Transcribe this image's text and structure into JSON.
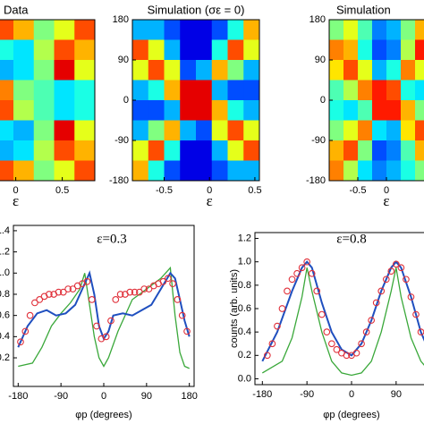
{
  "chart_data": [
    {
      "type": "heatmap",
      "title": "Data",
      "title_color": "#e02020",
      "xlabel": "ε",
      "xlim": [
        -0.9,
        0.85
      ],
      "ylim": [
        -180,
        180
      ],
      "xticks": [
        0,
        0.5
      ],
      "values": [
        [
          0.5,
          0.5,
          0.5,
          0.8,
          0.7,
          0.5,
          0.6,
          0.8
        ],
        [
          0.5,
          0.5,
          0.6,
          0.4,
          0.35,
          0.55,
          0.8,
          0.7
        ],
        [
          0.5,
          0.5,
          0.7,
          0.3,
          0.35,
          0.5,
          0.9,
          0.6
        ],
        [
          0.6,
          0.6,
          0.8,
          0.75,
          0.5,
          0.45,
          0.35,
          0.4
        ],
        [
          0.6,
          0.6,
          0.85,
          0.8,
          0.55,
          0.45,
          0.35,
          0.4
        ],
        [
          0.5,
          0.5,
          0.7,
          0.35,
          0.3,
          0.5,
          0.9,
          0.6
        ],
        [
          0.5,
          0.5,
          0.6,
          0.3,
          0.35,
          0.55,
          0.8,
          0.7
        ],
        [
          0.5,
          0.5,
          0.5,
          0.8,
          0.7,
          0.5,
          0.6,
          0.8
        ]
      ]
    },
    {
      "type": "heatmap",
      "title": "Simulation (σε = 0)",
      "title_color": "#3aa83a",
      "xlabel": "ε",
      "xlim": [
        -0.85,
        0.55
      ],
      "ylim": [
        -180,
        180
      ],
      "xticks": [
        -0.5,
        0,
        0.5
      ],
      "yticks": [
        180,
        90,
        0,
        -90,
        -180
      ],
      "values": [
        [
          0.3,
          0.3,
          0.2,
          0.1,
          0.1,
          0.2,
          0.4,
          0.7
        ],
        [
          0.8,
          0.6,
          0.3,
          0.1,
          0.1,
          0.4,
          0.8,
          0.6
        ],
        [
          0.6,
          0.8,
          0.6,
          0.2,
          0.3,
          0.7,
          0.5,
          0.3
        ],
        [
          0.3,
          0.4,
          0.7,
          0.9,
          0.9,
          0.3,
          0.2,
          0.2
        ],
        [
          0.2,
          0.2,
          0.3,
          0.9,
          0.9,
          0.7,
          0.4,
          0.3
        ],
        [
          0.3,
          0.5,
          0.7,
          0.3,
          0.2,
          0.6,
          0.8,
          0.6
        ],
        [
          0.6,
          0.8,
          0.4,
          0.1,
          0.1,
          0.3,
          0.6,
          0.8
        ],
        [
          0.7,
          0.4,
          0.2,
          0.1,
          0.1,
          0.2,
          0.3,
          0.3
        ]
      ]
    },
    {
      "type": "heatmap",
      "title": "Simulation",
      "title_color": "#1f4fbf",
      "xlabel": "ε",
      "xlim": [
        -1,
        1
      ],
      "ylim": [
        -180,
        180
      ],
      "xticks": [
        -0.5,
        0
      ],
      "yticks": [
        180,
        90,
        0,
        -90,
        -180
      ],
      "values": [
        [
          0.5,
          0.6,
          0.45,
          0.25,
          0.3,
          0.5,
          0.7,
          0.8
        ],
        [
          0.75,
          0.7,
          0.4,
          0.2,
          0.25,
          0.55,
          0.85,
          0.7
        ],
        [
          0.65,
          0.8,
          0.6,
          0.3,
          0.4,
          0.75,
          0.6,
          0.5
        ],
        [
          0.45,
          0.55,
          0.75,
          0.85,
          0.8,
          0.4,
          0.35,
          0.4
        ],
        [
          0.4,
          0.35,
          0.45,
          0.85,
          0.85,
          0.7,
          0.5,
          0.45
        ],
        [
          0.5,
          0.6,
          0.75,
          0.35,
          0.3,
          0.65,
          0.8,
          0.65
        ],
        [
          0.7,
          0.8,
          0.5,
          0.2,
          0.25,
          0.45,
          0.7,
          0.75
        ],
        [
          0.75,
          0.55,
          0.35,
          0.25,
          0.3,
          0.4,
          0.5,
          0.55
        ]
      ]
    },
    {
      "type": "line",
      "title": "ε=0.3",
      "xlabel": "φp (degrees)",
      "xlim": [
        -190,
        190
      ],
      "ylim": [
        -0.07,
        1.45
      ],
      "xticks": [
        -180,
        -90,
        0,
        90,
        180
      ],
      "yticks": [
        1.4,
        1.2,
        {
          "value": 1,
          "label": "1.0"
        },
        0.8,
        0.6,
        0.4,
        0.2
      ],
      "series": [
        {
          "color": "#3aa83a",
          "marker": "none",
          "x": [
            -180,
            -150,
            -130,
            -110,
            -90,
            -70,
            -50,
            -40,
            -30,
            -20,
            -10,
            0,
            10,
            30,
            60,
            90,
            120,
            140,
            150,
            160,
            170,
            180
          ],
          "values": [
            0.12,
            0.15,
            0.3,
            0.5,
            0.62,
            0.72,
            0.85,
            1.0,
            0.7,
            0.4,
            0.2,
            0.12,
            0.2,
            0.45,
            0.75,
            0.85,
            0.95,
            1.05,
            0.6,
            0.25,
            0.12,
            0.1
          ]
        },
        {
          "color": "#1f4fbf",
          "marker": "none",
          "x": [
            -180,
            -160,
            -140,
            -120,
            -100,
            -80,
            -60,
            -40,
            -30,
            -20,
            -10,
            0,
            10,
            20,
            40,
            60,
            80,
            100,
            120,
            140,
            150,
            160,
            170,
            180
          ],
          "values": [
            0.3,
            0.5,
            0.62,
            0.65,
            0.6,
            0.62,
            0.7,
            0.9,
            1.0,
            0.8,
            0.5,
            0.38,
            0.45,
            0.6,
            0.62,
            0.6,
            0.65,
            0.7,
            0.85,
            1.0,
            0.95,
            0.75,
            0.55,
            0.4
          ]
        },
        {
          "color": "#e0303a",
          "marker": "circle",
          "x": [
            -175,
            -165,
            -155,
            -145,
            -135,
            -125,
            -115,
            -105,
            -95,
            -85,
            -75,
            -65,
            -55,
            -45,
            -35,
            -25,
            -15,
            -5,
            5,
            15,
            25,
            35,
            45,
            55,
            65,
            75,
            85,
            95,
            105,
            115,
            125,
            135,
            145,
            155,
            165,
            175
          ],
          "values": [
            0.35,
            0.45,
            0.6,
            0.72,
            0.75,
            0.78,
            0.8,
            0.8,
            0.82,
            0.82,
            0.85,
            0.85,
            0.88,
            0.9,
            0.92,
            0.75,
            0.5,
            0.38,
            0.4,
            0.55,
            0.75,
            0.8,
            0.8,
            0.82,
            0.82,
            0.82,
            0.85,
            0.85,
            0.88,
            0.9,
            0.92,
            0.95,
            0.9,
            0.75,
            0.6,
            0.45
          ]
        }
      ]
    },
    {
      "type": "line",
      "title": "ε=0.8",
      "xlabel": "φp (degrees)",
      "ylabel": "counts (arb. units)",
      "xlim": [
        -195,
        195
      ],
      "ylim": [
        -0.05,
        1.25
      ],
      "xticks": [
        -180,
        -90,
        0,
        90
      ],
      "yticks": [
        1.2,
        {
          "value": 1,
          "label": "1.0"
        },
        0.8,
        0.6,
        0.4,
        0.2,
        {
          "value": 0,
          "label": "0.0"
        }
      ],
      "series": [
        {
          "color": "#3aa83a",
          "marker": "none",
          "x": [
            -180,
            -140,
            -120,
            -100,
            -90,
            -80,
            -60,
            -40,
            -20,
            0,
            20,
            40,
            60,
            80,
            90,
            100,
            120,
            140,
            150
          ],
          "values": [
            0.05,
            0.15,
            0.35,
            0.7,
            0.95,
            0.75,
            0.4,
            0.15,
            0.05,
            0.03,
            0.05,
            0.15,
            0.4,
            0.75,
            0.95,
            0.7,
            0.35,
            0.15,
            0.1
          ]
        },
        {
          "color": "#1f4fbf",
          "marker": "none",
          "x": [
            -180,
            -150,
            -120,
            -100,
            -90,
            -80,
            -60,
            -40,
            -20,
            0,
            20,
            40,
            60,
            80,
            90,
            100,
            120,
            140,
            150
          ],
          "values": [
            0.15,
            0.4,
            0.75,
            0.95,
            1.0,
            0.95,
            0.65,
            0.4,
            0.25,
            0.2,
            0.3,
            0.5,
            0.75,
            0.95,
            1.0,
            0.95,
            0.7,
            0.4,
            0.3
          ]
        },
        {
          "color": "#e0303a",
          "marker": "circle",
          "x": [
            -170,
            -160,
            -150,
            -140,
            -130,
            -120,
            -110,
            -100,
            -90,
            -80,
            -70,
            -60,
            -50,
            -40,
            -30,
            -20,
            -10,
            0,
            10,
            20,
            30,
            40,
            50,
            60,
            70,
            80,
            90,
            100,
            110,
            120,
            130,
            140
          ],
          "values": [
            0.2,
            0.3,
            0.45,
            0.6,
            0.75,
            0.85,
            0.9,
            0.95,
            1.0,
            0.9,
            0.75,
            0.55,
            0.4,
            0.3,
            0.25,
            0.22,
            0.2,
            0.2,
            0.22,
            0.3,
            0.4,
            0.5,
            0.65,
            0.75,
            0.85,
            0.92,
            0.98,
            0.95,
            0.85,
            0.7,
            0.55,
            0.4
          ]
        }
      ]
    }
  ]
}
